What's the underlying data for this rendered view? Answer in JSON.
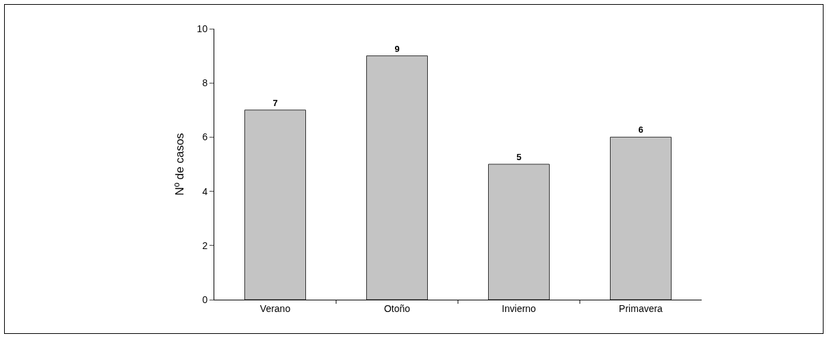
{
  "chart_data": {
    "type": "bar",
    "ylabel": "Nº de casos",
    "categories": [
      "Verano",
      "Otoño",
      "Invierno",
      "Primavera"
    ],
    "values": [
      7,
      9,
      5,
      6
    ],
    "color": "#c4c4c4",
    "ylim": [
      0,
      10
    ],
    "yticks": [
      0,
      2,
      4,
      6,
      8,
      10
    ],
    "grid": false,
    "data_labels": true
  }
}
